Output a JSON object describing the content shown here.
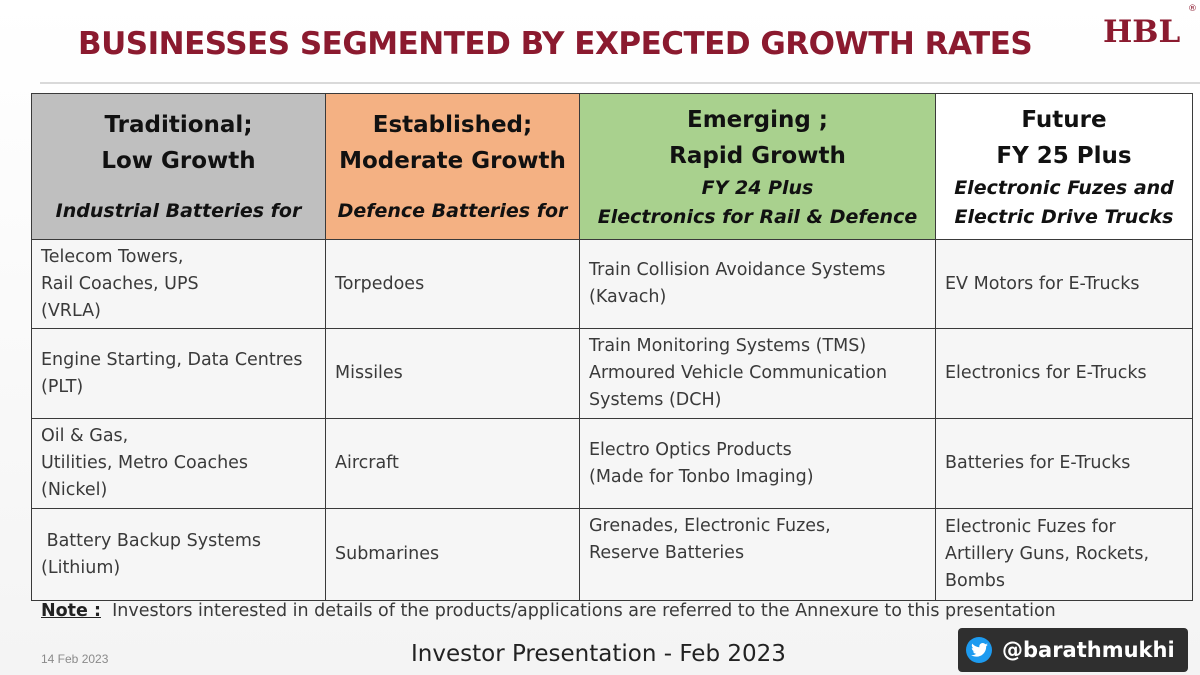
{
  "slide": {
    "title": "BUSINESSES SEGMENTED BY EXPECTED GROWTH RATES",
    "logo": "HBL",
    "logo_mark": "®"
  },
  "table": {
    "headers": [
      {
        "line1": "Traditional;",
        "line2": "Low Growth",
        "sub1": "",
        "sub2": "Industrial Batteries for"
      },
      {
        "line1": "Established;",
        "line2": "Moderate Growth",
        "sub1": "",
        "sub2": "Defence Batteries for"
      },
      {
        "line1": "Emerging ;",
        "line2": "Rapid Growth",
        "sub1": "FY 24 Plus",
        "sub2": "Electronics for  Rail & Defence"
      },
      {
        "line1": "Future",
        "line2": "FY 25 Plus",
        "sub1": "Electronic Fuzes and",
        "sub2": "Electric Drive Trucks"
      }
    ],
    "header_colors": [
      "#bfbfbf",
      "#f4b183",
      "#a9d18e",
      "#ffffff"
    ],
    "rows": [
      [
        [
          "Telecom Towers,",
          "Rail Coaches, UPS",
          "(VRLA)"
        ],
        [
          "Torpedoes"
        ],
        [
          "Train Collision Avoidance Systems",
          "(Kavach)"
        ],
        [
          "EV Motors for E-Trucks"
        ]
      ],
      [
        [
          "Engine Starting, Data Centres",
          "(PLT)"
        ],
        [
          "Missiles"
        ],
        [
          "Train Monitoring Systems (TMS)",
          "Armoured Vehicle Communication",
          "Systems  (DCH)"
        ],
        [
          "Electronics for E-Trucks"
        ]
      ],
      [
        [
          "Oil & Gas,",
          "Utilities, Metro Coaches",
          "(Nickel)"
        ],
        [
          "Aircraft"
        ],
        [
          "Electro Optics Products",
          "(Made for Tonbo Imaging)"
        ],
        [
          "Batteries for E-Trucks"
        ]
      ],
      [
        [
          " Battery Backup Systems",
          "(Lithium)"
        ],
        [
          "Submarines"
        ],
        [
          "Grenades, Electronic Fuzes,",
          "Reserve Batteries",
          ""
        ],
        [
          "Electronic Fuzes for",
          "Artillery Guns, Rockets,",
          "Bombs"
        ]
      ]
    ]
  },
  "note": {
    "label": "Note :",
    "text": "  Investors interested in details of the products/applications are referred to the Annexure to this presentation"
  },
  "footer": {
    "date": "14 Feb 2023",
    "center": "Investor Presentation - Feb 2023"
  },
  "social": {
    "icon": "twitter-icon",
    "handle": "@barathmukhi",
    "icon_color": "#1d9bf0"
  }
}
